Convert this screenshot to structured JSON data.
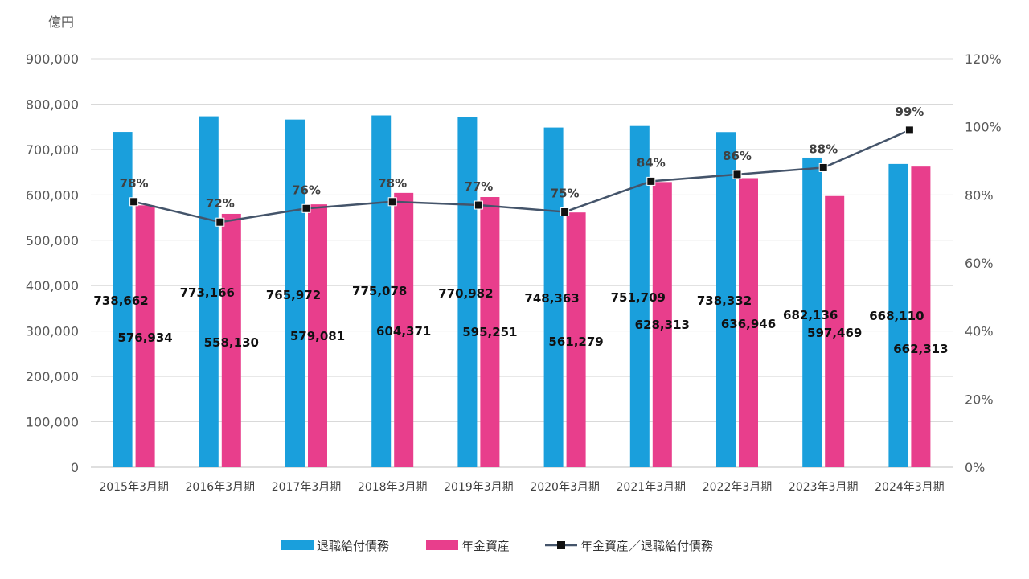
{
  "chart_data": {
    "type": "bar",
    "unit_label": "億円",
    "categories": [
      "2015年3月期",
      "2016年3月期",
      "2017年3月期",
      "2018年3月期",
      "2019年3月期",
      "2020年3月期",
      "2021年3月期",
      "2022年3月期",
      "2023年3月期",
      "2024年3月期"
    ],
    "series": [
      {
        "name": "退職給付債務",
        "type": "bar",
        "axis": "left",
        "color": "#1a9fdc",
        "values": [
          738662,
          773166,
          765972,
          775078,
          770982,
          748363,
          751709,
          738332,
          682136,
          668110
        ],
        "labels": [
          "738,662",
          "773,166",
          "765,972",
          "775,078",
          "770,982",
          "748,363",
          "751,709",
          "738,332",
          "682,136",
          "668,110"
        ]
      },
      {
        "name": "年金資産",
        "type": "bar",
        "axis": "left",
        "color": "#e83e8c",
        "values": [
          576934,
          558130,
          579081,
          604371,
          595251,
          561279,
          628313,
          636946,
          597469,
          662313
        ],
        "labels": [
          "576,934",
          "558,130",
          "579,081",
          "604,371",
          "595,251",
          "561,279",
          "628,313",
          "636,946",
          "597,469",
          "662,313"
        ]
      },
      {
        "name": "年金資産／退職給付債務",
        "type": "line",
        "axis": "right",
        "color": "#44546a",
        "values": [
          78,
          72,
          76,
          78,
          77,
          75,
          84,
          86,
          88,
          99
        ],
        "labels": [
          "78%",
          "72%",
          "76%",
          "78%",
          "77%",
          "75%",
          "84%",
          "86%",
          "88%",
          "99%"
        ]
      }
    ],
    "left_axis": {
      "min": 0,
      "max": 900000,
      "step": 100000,
      "tick_labels": [
        "0",
        "100,000",
        "200,000",
        "300,000",
        "400,000",
        "500,000",
        "600,000",
        "700,000",
        "800,000",
        "900,000"
      ]
    },
    "right_axis": {
      "min": 0,
      "max": 120,
      "step": 20,
      "tick_labels": [
        "0%",
        "20%",
        "40%",
        "60%",
        "80%",
        "100%",
        "120%"
      ]
    },
    "grid": true,
    "legend_position": "bottom-center"
  }
}
